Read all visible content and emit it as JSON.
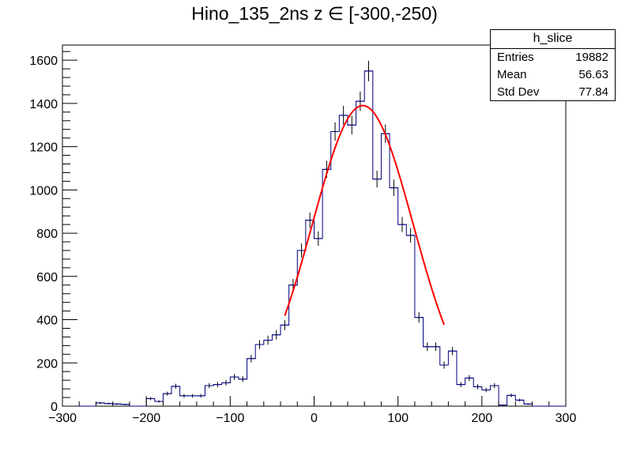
{
  "title": "Hino_135_2ns z  ∈ [-300,-250)",
  "stats_box": {
    "name": "h_slice",
    "rows": [
      {
        "label": "Entries",
        "value": "19882"
      },
      {
        "label": "Mean",
        "value": "56.63"
      },
      {
        "label": "Std Dev",
        "value": "77.84"
      }
    ]
  },
  "chart_data": {
    "type": "histogram",
    "xlim": [
      -300,
      300
    ],
    "ylim": [
      0,
      1670
    ],
    "bin_width": 10,
    "x_ticks": [
      -300,
      -200,
      -100,
      0,
      100,
      200,
      300
    ],
    "y_ticks": [
      0,
      200,
      400,
      600,
      800,
      1000,
      1200,
      1400,
      1600
    ],
    "hist_color": "#000080",
    "fit_color": "#ff0000",
    "bins": [
      {
        "x": -300,
        "y": 0
      },
      {
        "x": -290,
        "y": 0
      },
      {
        "x": -280,
        "y": 0
      },
      {
        "x": -270,
        "y": 0
      },
      {
        "x": -260,
        "y": 15
      },
      {
        "x": -250,
        "y": 12
      },
      {
        "x": -240,
        "y": 10
      },
      {
        "x": -230,
        "y": 8
      },
      {
        "x": -220,
        "y": 0
      },
      {
        "x": -210,
        "y": 0
      },
      {
        "x": -200,
        "y": 35
      },
      {
        "x": -190,
        "y": 22
      },
      {
        "x": -180,
        "y": 58
      },
      {
        "x": -170,
        "y": 92
      },
      {
        "x": -160,
        "y": 48
      },
      {
        "x": -150,
        "y": 48
      },
      {
        "x": -140,
        "y": 48
      },
      {
        "x": -130,
        "y": 95
      },
      {
        "x": -120,
        "y": 100
      },
      {
        "x": -110,
        "y": 108
      },
      {
        "x": -100,
        "y": 135
      },
      {
        "x": -90,
        "y": 125
      },
      {
        "x": -80,
        "y": 220
      },
      {
        "x": -70,
        "y": 285
      },
      {
        "x": -60,
        "y": 305
      },
      {
        "x": -50,
        "y": 330
      },
      {
        "x": -40,
        "y": 375
      },
      {
        "x": -30,
        "y": 560
      },
      {
        "x": -20,
        "y": 720
      },
      {
        "x": -10,
        "y": 860
      },
      {
        "x": 0,
        "y": 775
      },
      {
        "x": 10,
        "y": 1095
      },
      {
        "x": 20,
        "y": 1270
      },
      {
        "x": 30,
        "y": 1345
      },
      {
        "x": 40,
        "y": 1300
      },
      {
        "x": 50,
        "y": 1410
      },
      {
        "x": 60,
        "y": 1550
      },
      {
        "x": 70,
        "y": 1050
      },
      {
        "x": 80,
        "y": 1260
      },
      {
        "x": 90,
        "y": 1010
      },
      {
        "x": 100,
        "y": 840
      },
      {
        "x": 110,
        "y": 790
      },
      {
        "x": 120,
        "y": 410
      },
      {
        "x": 130,
        "y": 275
      },
      {
        "x": 140,
        "y": 275
      },
      {
        "x": 150,
        "y": 190
      },
      {
        "x": 160,
        "y": 255
      },
      {
        "x": 170,
        "y": 100
      },
      {
        "x": 180,
        "y": 130
      },
      {
        "x": 190,
        "y": 90
      },
      {
        "x": 200,
        "y": 75
      },
      {
        "x": 210,
        "y": 95
      },
      {
        "x": 220,
        "y": 5
      },
      {
        "x": 230,
        "y": 50
      },
      {
        "x": 240,
        "y": 28
      },
      {
        "x": 250,
        "y": 10
      }
    ],
    "fit": {
      "function": "gaussian",
      "amplitude": 1390,
      "mean": 58,
      "sigma": 60,
      "range": [
        -35,
        155
      ]
    }
  }
}
